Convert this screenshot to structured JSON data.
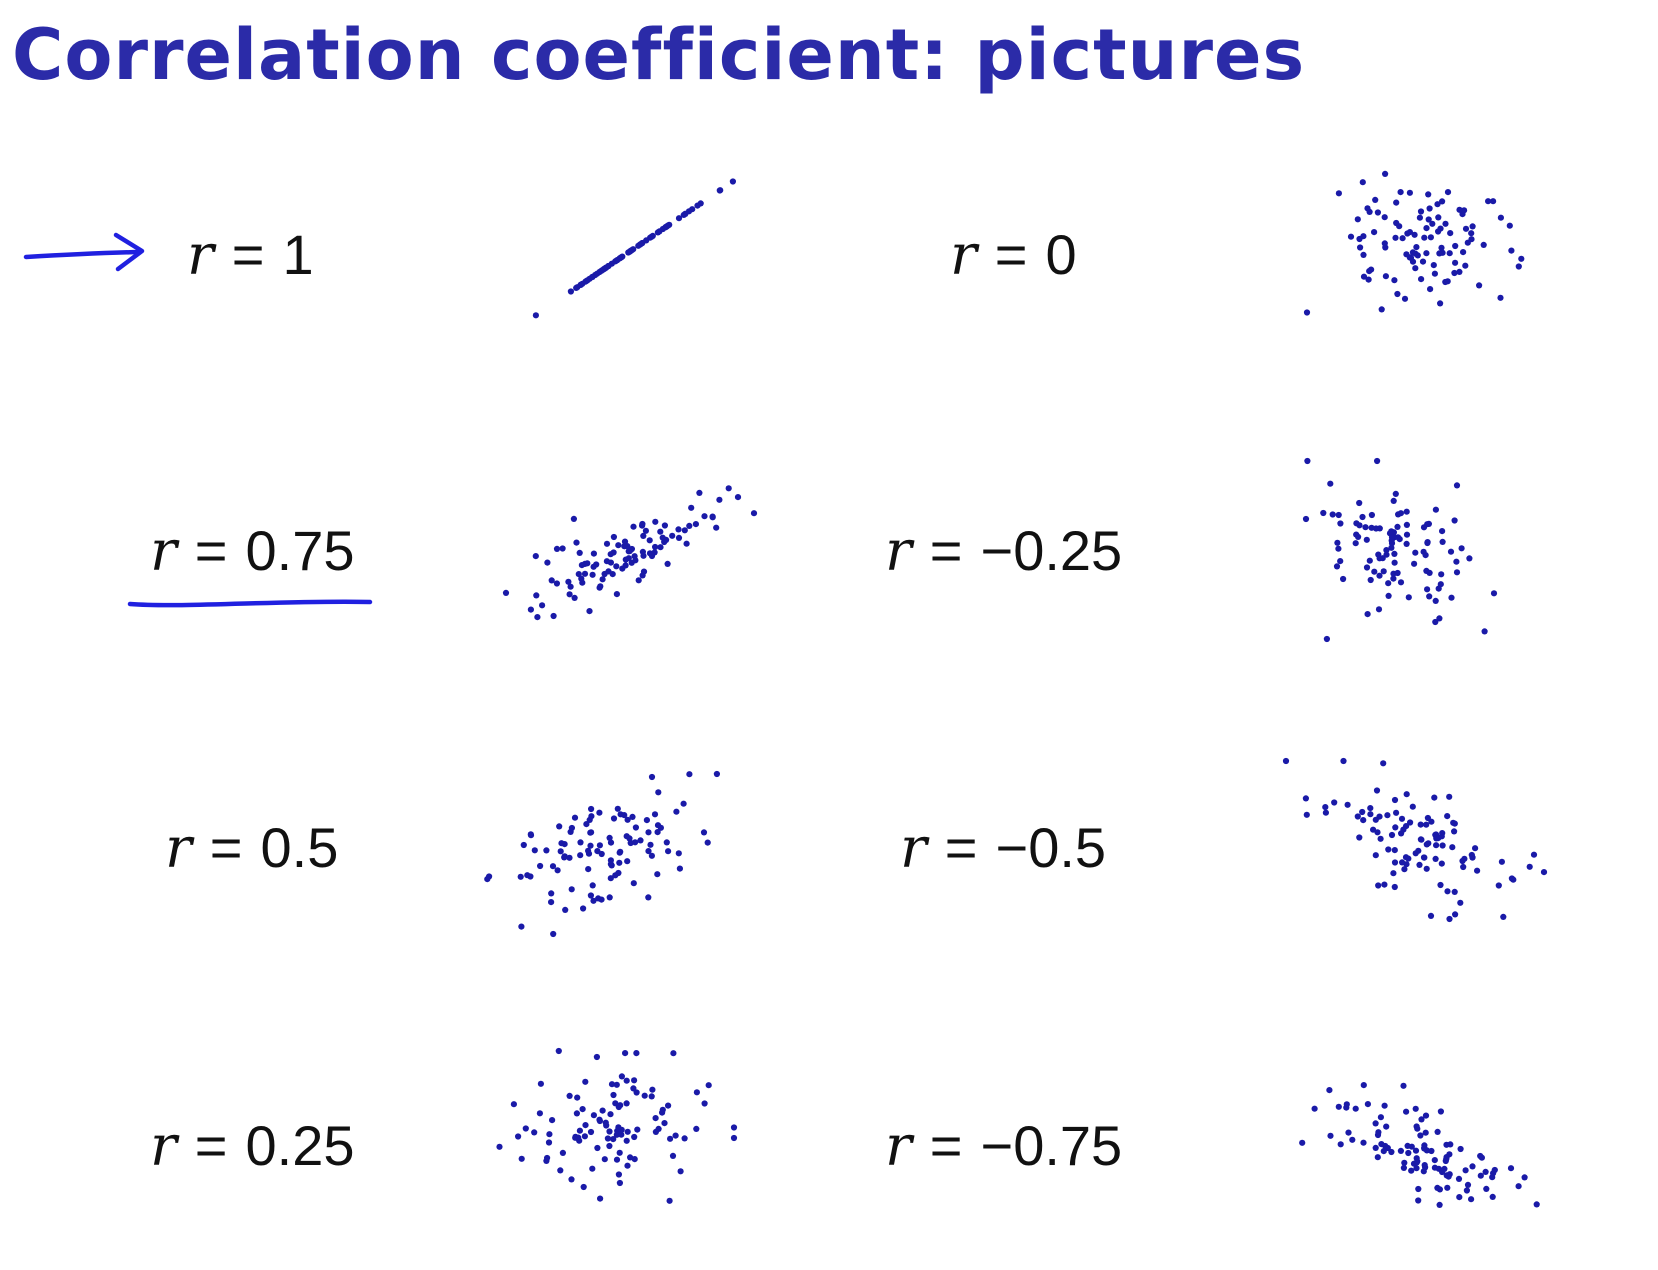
{
  "title": "Correlation coefficient: pictures",
  "colors": {
    "title": "#2b2ba8",
    "points": "#1a1aa8",
    "ink": "#2020e0",
    "text": "#111111"
  },
  "labels": {
    "r_symbol": "r",
    "equals": "=",
    "values": [
      "1",
      "0",
      "0.75",
      "−0.25",
      "0.5",
      "−0.5",
      "0.25",
      "−0.75"
    ]
  },
  "chart_data": [
    {
      "type": "scatter",
      "r": 1
    },
    {
      "type": "scatter",
      "r": 0
    },
    {
      "type": "scatter",
      "r": 0.75
    },
    {
      "type": "scatter",
      "r": -0.25
    },
    {
      "type": "scatter",
      "r": 0.5
    },
    {
      "type": "scatter",
      "r": -0.5
    },
    {
      "type": "scatter",
      "r": 0.25
    },
    {
      "type": "scatter",
      "r": -0.75
    }
  ],
  "annotations": [
    "arrow-icon",
    "underline-stroke"
  ]
}
